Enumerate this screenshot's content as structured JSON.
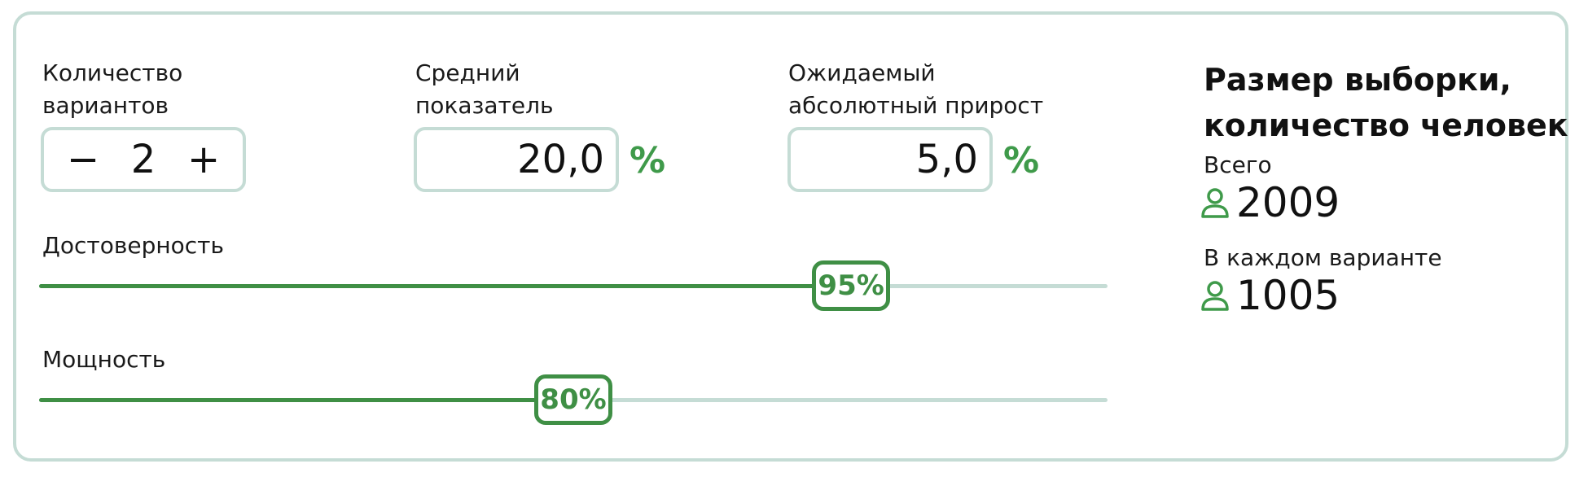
{
  "inputs": {
    "variants": {
      "label": "Количество\nвариантов",
      "value": "2",
      "minus": "−",
      "plus": "+"
    },
    "average": {
      "label": "Средний\nпоказатель",
      "value": "20,0",
      "unit": "%"
    },
    "growth": {
      "label": "Ожидаемый\nабсолютный прирост",
      "value": "5,0",
      "unit": "%"
    }
  },
  "sliders": {
    "reliability": {
      "label": "Достоверность",
      "value_label": "95%",
      "fraction": 0.76
    },
    "power": {
      "label": "Мощность",
      "value_label": "80%",
      "fraction": 0.5
    }
  },
  "result": {
    "title": "Размер выборки,\nколичество человек",
    "total_label": "Всего",
    "total_value": "2009",
    "each_label": "В каждом варианте",
    "each_value": "1005"
  },
  "colors": {
    "accent": "#3f8f45",
    "border": "#c5dcd5"
  },
  "icons": {
    "person": "person-icon"
  }
}
